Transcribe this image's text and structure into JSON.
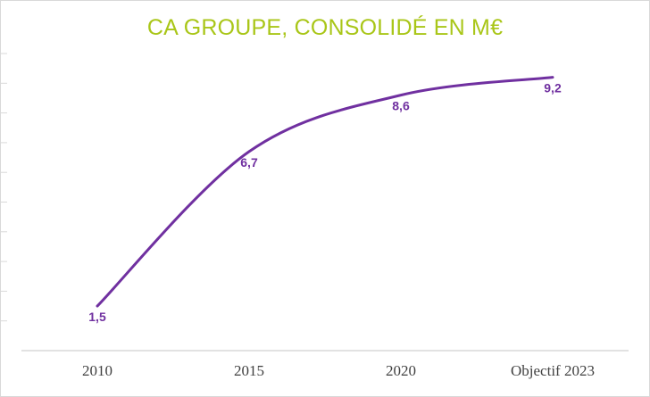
{
  "chart_data": {
    "type": "line",
    "title": "CA GROUPE, CONSOLIDÉ EN M€",
    "categories": [
      "2010",
      "2015",
      "2020",
      "Objectif 2023"
    ],
    "series": [
      {
        "values": [
          1.5,
          6.7,
          8.6,
          9.2
        ],
        "labels": [
          "1,5",
          "6,7",
          "8,6",
          "9,2"
        ]
      }
    ],
    "xlabel": "",
    "ylabel": "",
    "ylim": [
      0,
      10
    ],
    "grid": false,
    "smooth": true,
    "colors": {
      "title": "#a9c618",
      "line": "#7030a0",
      "axis": "#d9d9d9",
      "text": "#404040"
    }
  }
}
